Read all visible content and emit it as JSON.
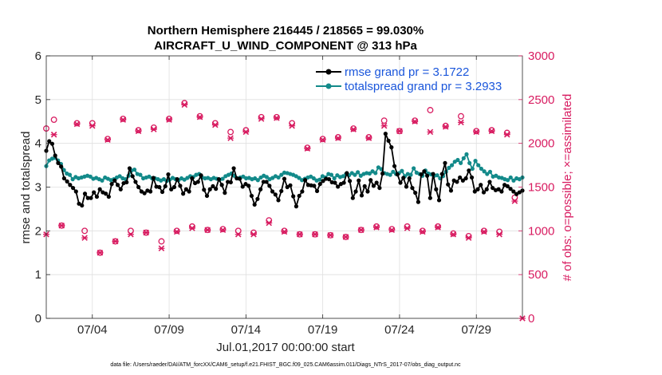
{
  "chart_data": {
    "type": "line",
    "title": "Northern Hemisphere 216445 / 218565 = 99.030%",
    "subtitle": "AIRCRAFT_U_WIND_COMPONENT @ 313 hPa",
    "xlabel": "Jul.01,2017 00:00:00 start",
    "ylabel": "rmse and totalspread",
    "ylabel_right": "# of obs: o=possible; ×=assimilated",
    "footnote": "data file: /Users/raeder/DAI/ATM_forcXX/CAM6_setup/f.e21.FHIST_BGC.f09_025.CAM6assim.011/Diags_NTrS_2017-07/obs_diag_output.nc",
    "xlim": [
      1.0,
      32.0
    ],
    "x_ticks": [
      4,
      9,
      14,
      19,
      24,
      29
    ],
    "x_tick_labels": [
      "07/04",
      "07/09",
      "07/14",
      "07/19",
      "07/24",
      "07/29"
    ],
    "ylim": [
      0,
      6
    ],
    "y_ticks": [
      0,
      1,
      2,
      3,
      4,
      5,
      6
    ],
    "y_tick_labels": [
      "0",
      "1",
      "2",
      "3",
      "4",
      "5",
      "6"
    ],
    "y2lim": [
      0,
      3000
    ],
    "y2_ticks": [
      0,
      500,
      1000,
      1500,
      2000,
      2500,
      3000
    ],
    "y2_tick_labels": [
      "0",
      "500",
      "1000",
      "1500",
      "2000",
      "2500",
      "3000"
    ],
    "legend_position": "top-right",
    "colors": {
      "rmse": "#000000",
      "spread": "#138a8a",
      "obs": "#d81b60",
      "legend_text": "#1a56db"
    },
    "series": [
      {
        "name": "rmse grand pr = 3.1722",
        "axis": "left",
        "values": [
          3.83,
          4.05,
          3.99,
          3.72,
          3.55,
          3.47,
          3.2,
          3.13,
          3.05,
          2.98,
          2.9,
          2.62,
          2.58,
          2.85,
          2.75,
          2.75,
          2.88,
          2.78,
          2.95,
          2.88,
          2.85,
          2.78,
          3.07,
          3.15,
          3.05,
          2.95,
          3.09,
          3.11,
          3.43,
          3.25,
          3.12,
          3.0,
          2.9,
          2.86,
          2.92,
          2.9,
          3.21,
          3.01,
          3.0,
          2.89,
          3.02,
          3.29,
          2.95,
          3.0,
          3.18,
          3.03,
          2.85,
          2.95,
          2.9,
          3.2,
          3.09,
          3.12,
          3.27,
          2.94,
          2.8,
          2.95,
          3.02,
          2.96,
          3.18,
          3.05,
          2.87,
          3.12,
          3.11,
          3.43,
          3.2,
          3.19,
          3.01,
          3.07,
          3.03,
          2.8,
          2.6,
          2.73,
          2.95,
          3.12,
          3.12,
          3.03,
          2.9,
          2.83,
          2.7,
          2.91,
          3.19,
          3.0,
          3.04,
          2.79,
          2.56,
          2.8,
          2.9,
          3.16,
          3.05,
          3.04,
          3.03,
          2.91,
          3.07,
          3.14,
          3.19,
          3.18,
          3.11,
          3.1,
          3.01,
          3.07,
          3.1,
          3.32,
          3.14,
          2.75,
          2.9,
          3.15,
          2.81,
          3.02,
          2.9,
          3.16,
          3.03,
          3.1,
          2.98,
          3.31,
          4.22,
          4.06,
          3.91,
          3.48,
          3.29,
          3.1,
          3.21,
          3.01,
          3.2,
          2.98,
          2.87,
          2.66,
          3.29,
          3.36,
          3.26,
          2.75,
          3.3,
          2.95,
          2.7,
          3.3,
          3.55,
          3.06,
          2.92,
          3.15,
          3.12,
          3.22,
          3.15,
          3.2,
          3.38,
          3.22,
          2.9,
          2.95,
          3.05,
          2.88,
          2.95,
          3.12,
          2.98,
          2.93,
          2.95,
          2.9,
          3.05,
          3.02,
          2.96,
          2.9,
          2.84,
          2.88,
          2.92
        ]
      },
      {
        "name": "totalspread grand pr = 3.2933",
        "axis": "left",
        "values": [
          3.48,
          3.61,
          3.65,
          3.67,
          3.61,
          3.53,
          3.39,
          3.31,
          3.28,
          3.18,
          3.23,
          3.2,
          3.22,
          3.24,
          3.26,
          3.24,
          3.19,
          3.21,
          3.18,
          3.15,
          3.22,
          3.19,
          3.16,
          3.18,
          3.22,
          3.25,
          3.2,
          3.18,
          3.26,
          3.38,
          3.4,
          3.3,
          3.28,
          3.2,
          3.22,
          3.24,
          3.2,
          3.2,
          3.18,
          3.15,
          3.18,
          3.14,
          3.17,
          3.21,
          3.18,
          3.16,
          3.2,
          3.17,
          3.21,
          3.25,
          3.23,
          3.28,
          3.3,
          3.22,
          3.2,
          3.21,
          3.18,
          3.21,
          3.19,
          3.17,
          3.19,
          3.25,
          3.28,
          3.31,
          3.26,
          3.2,
          3.22,
          3.24,
          3.2,
          3.21,
          3.18,
          3.2,
          3.16,
          3.22,
          3.26,
          3.23,
          3.18,
          3.21,
          3.25,
          3.22,
          3.28,
          3.33,
          3.32,
          3.3,
          3.28,
          3.25,
          3.21,
          3.16,
          3.19,
          3.22,
          3.24,
          3.2,
          3.15,
          3.17,
          3.25,
          3.22,
          3.3,
          3.28,
          3.2,
          3.27,
          3.23,
          3.25,
          3.3,
          3.27,
          3.32,
          3.28,
          3.34,
          3.26,
          3.3,
          3.32,
          3.31,
          3.36,
          3.32,
          3.45,
          3.41,
          3.32,
          3.3,
          3.28,
          3.35,
          3.3,
          3.32,
          3.37,
          3.25,
          3.3,
          3.28,
          3.43,
          3.33,
          3.3,
          3.26,
          3.38,
          3.31,
          3.29,
          3.26,
          3.27,
          3.2,
          3.25,
          3.35,
          3.44,
          3.5,
          3.58,
          3.62,
          3.55,
          3.66,
          3.75,
          3.55,
          3.42,
          3.6,
          3.5,
          3.42,
          3.36,
          3.3,
          3.35,
          3.24,
          3.26,
          3.22,
          3.21,
          3.18,
          3.16,
          3.22,
          3.15,
          3.2,
          3.18,
          3.22
        ]
      },
      {
        "name": "possible obs (o)",
        "axis": "right",
        "x": [
          1.0,
          1.5,
          2.0,
          3.0,
          3.5,
          4.0,
          4.5,
          5.0,
          5.5,
          6.0,
          6.5,
          7.0,
          7.5,
          8.0,
          8.5,
          9.0,
          9.5,
          10.0,
          10.5,
          11.0,
          11.5,
          12.0,
          12.5,
          13.0,
          13.5,
          14.0,
          14.5,
          15.0,
          15.5,
          16.0,
          16.5,
          17.0,
          17.5,
          18.0,
          18.5,
          19.0,
          19.5,
          20.0,
          20.5,
          21.0,
          21.5,
          22.0,
          22.5,
          23.0,
          23.5,
          24.0,
          24.5,
          25.0,
          25.5,
          26.0,
          26.5,
          27.0,
          27.5,
          28.0,
          28.5,
          29.0,
          29.5,
          30.0,
          30.5,
          31.0,
          31.5
        ],
        "values": [
          2170,
          2270,
          1060,
          2230,
          1000,
          2230,
          750,
          2050,
          880,
          2280,
          1000,
          2150,
          980,
          2180,
          880,
          2280,
          1000,
          2460,
          1050,
          2310,
          1010,
          2230,
          1020,
          2130,
          1000,
          2150,
          980,
          2300,
          1120,
          2300,
          1000,
          2230,
          960,
          1950,
          960,
          2050,
          950,
          2070,
          930,
          2170,
          1010,
          2070,
          1050,
          2260,
          1020,
          2140,
          1050,
          2260,
          1000,
          2380,
          1050,
          2200,
          970,
          2310,
          940,
          2140,
          1000,
          2150,
          990,
          2120,
          1380
        ]
      },
      {
        "name": "assimilated obs (×)",
        "axis": "right",
        "x": [
          1.0,
          1.5,
          2.0,
          3.0,
          3.5,
          4.0,
          4.5,
          5.0,
          5.5,
          6.0,
          6.5,
          7.0,
          7.5,
          8.0,
          8.5,
          9.0,
          9.5,
          10.0,
          10.5,
          11.0,
          11.5,
          12.0,
          12.5,
          13.0,
          13.5,
          14.0,
          14.5,
          15.0,
          15.5,
          16.0,
          16.5,
          17.0,
          17.5,
          18.0,
          18.5,
          19.0,
          19.5,
          20.0,
          20.5,
          21.0,
          21.5,
          22.0,
          22.5,
          23.0,
          23.5,
          24.0,
          24.5,
          25.0,
          25.5,
          26.0,
          26.5,
          27.0,
          27.5,
          28.0,
          28.5,
          29.0,
          29.5,
          30.0,
          30.5,
          31.0,
          31.5,
          32.0
        ],
        "values": [
          960,
          2100,
          1060,
          2220,
          920,
          2200,
          750,
          2040,
          880,
          2270,
          960,
          2140,
          980,
          2160,
          800,
          2270,
          990,
          2440,
          1030,
          2300,
          1010,
          2210,
          1010,
          2060,
          960,
          2130,
          960,
          2280,
          1090,
          2290,
          990,
          2200,
          960,
          1940,
          960,
          2040,
          950,
          2060,
          930,
          2160,
          1010,
          2060,
          1040,
          2200,
          1010,
          2140,
          1030,
          2250,
          990,
          2130,
          1040,
          2190,
          960,
          2240,
          920,
          2130,
          990,
          2140,
          960,
          2100,
          1340,
          0
        ]
      }
    ]
  }
}
